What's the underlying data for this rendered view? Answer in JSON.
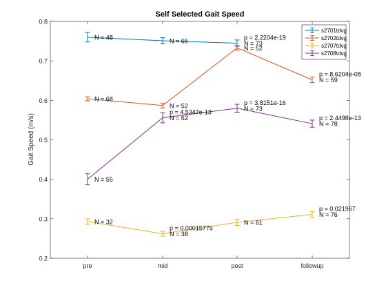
{
  "chart_data": {
    "type": "line",
    "title": "Self Selected Gait Speed",
    "xlabel": "",
    "ylabel": "Gait Speed (m/s)",
    "categories": [
      "pre",
      "mid",
      "post",
      "followup"
    ],
    "ylim": [
      0.2,
      0.8
    ],
    "yticks": [
      "0.2",
      "0.3",
      "0.4",
      "0.5",
      "0.6",
      "0.7",
      "0.8"
    ],
    "grid": false,
    "legend_position": "top-right",
    "series": [
      {
        "name": "s2701tdvg",
        "color": "#0072BD",
        "values": [
          0.76,
          0.751,
          0.745,
          null
        ],
        "errors": [
          0.012,
          0.008,
          0.008,
          null
        ],
        "n_labels": [
          "N = 48",
          "N = 66",
          "N = 73",
          ""
        ],
        "p_labels": [
          "",
          "",
          "p = 2.2204e-19",
          ""
        ]
      },
      {
        "name": "s2702tdvg",
        "color": "#D95319",
        "values": [
          0.604,
          0.587,
          0.733,
          0.652
        ],
        "errors": [
          0.005,
          0.006,
          0.006,
          0.007
        ],
        "n_labels": [
          "N = 68",
          "N = 52",
          "N = 52",
          "N = 59"
        ],
        "p_labels": [
          "",
          "",
          "",
          "p = 8.6204e-08"
        ]
      },
      {
        "name": "s2707tdvg",
        "color": "#EDB120",
        "values": [
          0.293,
          0.262,
          0.291,
          0.311
        ],
        "errors": [
          0.007,
          0.006,
          0.008,
          0.007
        ],
        "n_labels": [
          "N = 32",
          "N = 38",
          "N = 61",
          "N = 76"
        ],
        "p_labels": [
          "",
          "p = 0.00015776",
          "",
          "p = 0.021967"
        ]
      },
      {
        "name": "s2708tdvg",
        "color": "#7E2F8E",
        "values": [
          0.4,
          0.556,
          0.58,
          0.541
        ],
        "errors": [
          0.014,
          0.013,
          0.01,
          0.009
        ],
        "n_labels": [
          "N = 55",
          "N = 62",
          "N = 73",
          "N = 78"
        ],
        "p_labels": [
          "",
          "p = 4.5347e-13",
          "p = 3.8151e-16",
          "p = 2.4498e-13"
        ]
      }
    ]
  }
}
